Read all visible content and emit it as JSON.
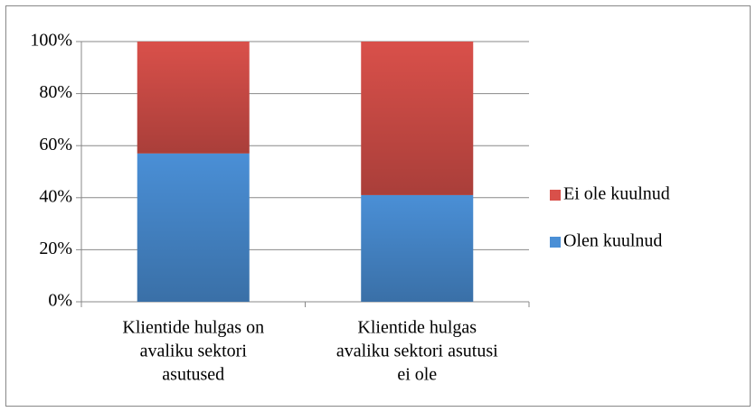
{
  "chart_data": {
    "type": "stacked_bar",
    "categories": [
      [
        "Klientide hulgas on",
        "avaliku sektori",
        "asutused"
      ],
      [
        "Klientide hulgas",
        "avaliku sektori asutusi",
        "ei ole"
      ]
    ],
    "series": [
      {
        "name": "Olen kuulnud",
        "color": "#4a8fd6",
        "values": [
          57,
          41
        ]
      },
      {
        "name": "Ei ole kuulnud",
        "color": "#d9504a",
        "values": [
          43,
          59
        ]
      }
    ],
    "ylim": [
      0,
      100
    ],
    "yticks": [
      {
        "value": 0,
        "label": "0%"
      },
      {
        "value": 20,
        "label": "20%"
      },
      {
        "value": 40,
        "label": "40%"
      },
      {
        "value": 60,
        "label": "60%"
      },
      {
        "value": 80,
        "label": "80%"
      },
      {
        "value": 100,
        "label": "100%"
      }
    ],
    "grid": true,
    "legend": "right"
  }
}
